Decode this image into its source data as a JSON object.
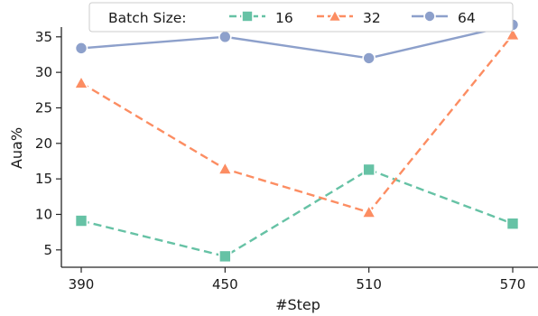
{
  "chart_data": {
    "type": "line",
    "xlabel": "#Step",
    "ylabel": "Aua%",
    "x": [
      390,
      450,
      510,
      570
    ],
    "x_tick_labels": [
      "390",
      "450",
      "510",
      "570"
    ],
    "y_ticks": [
      5,
      10,
      15,
      20,
      25,
      30,
      35
    ],
    "y_tick_labels": [
      "5",
      "10",
      "15",
      "20",
      "25",
      "30",
      "35"
    ],
    "xlim": [
      390,
      570
    ],
    "ylim": [
      2.5,
      38.5
    ],
    "grid": false,
    "legend": {
      "title": "Batch Size:",
      "placement": "top-center"
    },
    "series": [
      {
        "name": "16",
        "values": [
          9.1,
          4.1,
          16.3,
          8.7
        ],
        "color": "#66c2a5",
        "marker": "square",
        "dash": "dashed"
      },
      {
        "name": "32",
        "values": [
          28.5,
          16.4,
          10.3,
          35.3
        ],
        "color": "#fc8d62",
        "marker": "triangle",
        "dash": "dashed"
      },
      {
        "name": "64",
        "values": [
          33.4,
          35.0,
          32.0,
          36.7
        ],
        "color": "#8da0cb",
        "marker": "circle",
        "dash": "solid"
      }
    ]
  }
}
